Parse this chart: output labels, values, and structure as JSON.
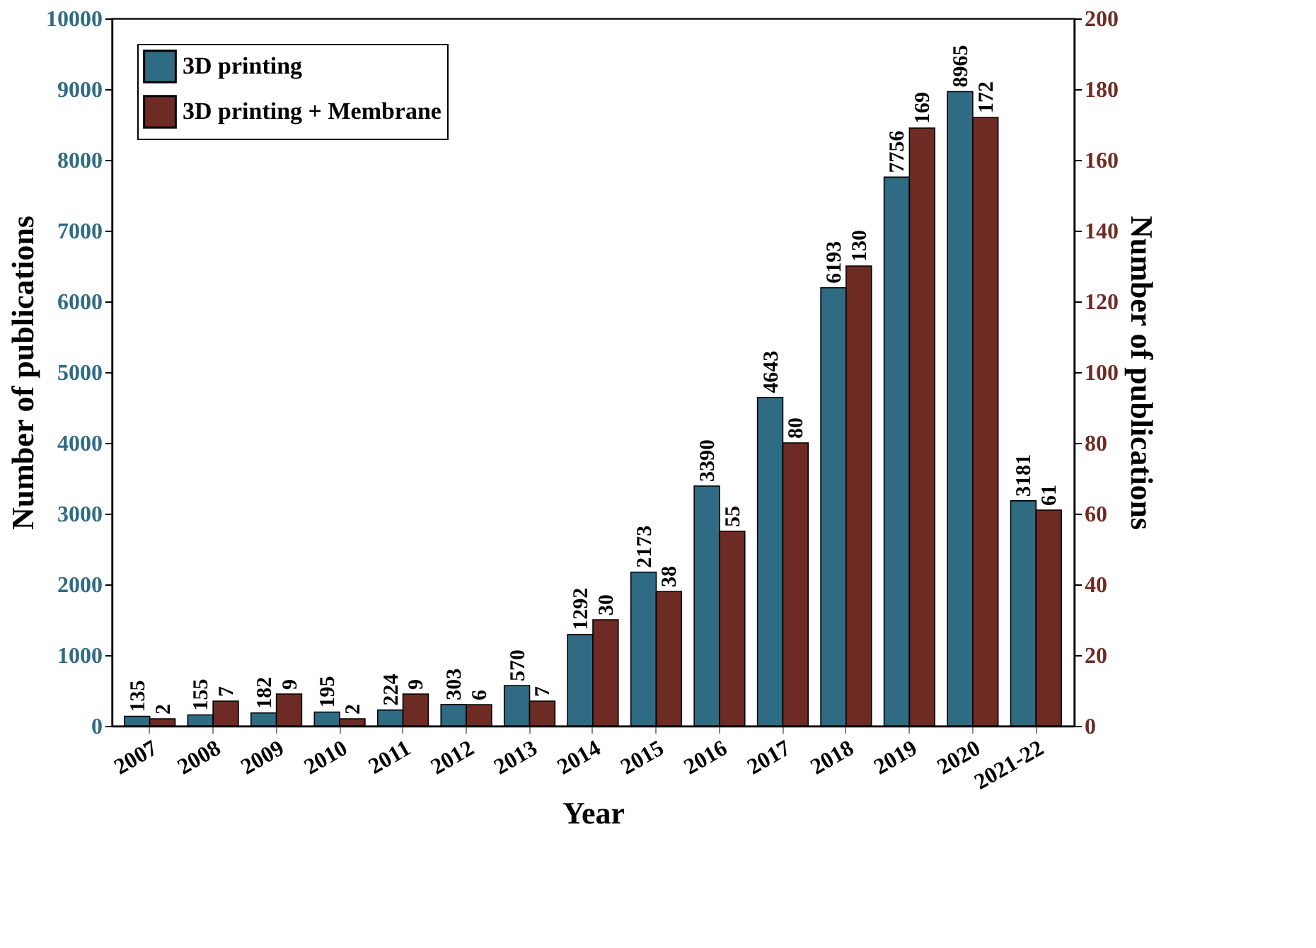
{
  "chart_data": {
    "type": "bar",
    "xlabel": "Year",
    "ylabel": "Number of publications",
    "y2label": "Number of publications",
    "categories": [
      "2007",
      "2008",
      "2009",
      "2010",
      "2011",
      "2012",
      "2013",
      "2014",
      "2015",
      "2016",
      "2017",
      "2018",
      "2019",
      "2020",
      "2021-22"
    ],
    "series": [
      {
        "name": "3D printing",
        "color": "#2f6b83",
        "values": [
          135,
          155,
          182,
          195,
          224,
          303,
          570,
          1292,
          2173,
          3390,
          4643,
          6193,
          7756,
          8965,
          3181
        ]
      },
      {
        "name": "3D printing + Membrane",
        "color": "#6e2b24",
        "axis": "y2",
        "values": [
          2,
          7,
          9,
          2,
          9,
          6,
          7,
          30,
          38,
          55,
          80,
          130,
          169,
          172,
          61
        ]
      }
    ],
    "ylim": [
      0,
      10000
    ],
    "yticks": [
      0,
      1000,
      2000,
      3000,
      4000,
      5000,
      6000,
      7000,
      8000,
      9000,
      10000
    ],
    "y2lim": [
      0,
      200
    ],
    "y2ticks": [
      0,
      20,
      40,
      60,
      80,
      100,
      120,
      140,
      160,
      180,
      200
    ],
    "data_labels": true,
    "legend": "top left",
    "grid": false
  }
}
